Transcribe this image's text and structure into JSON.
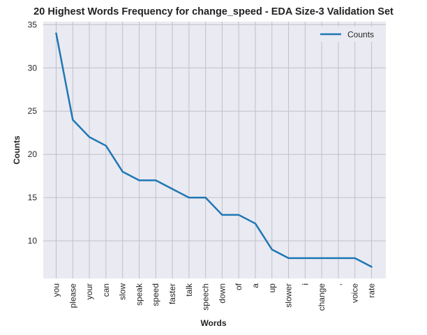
{
  "chart_data": {
    "type": "line",
    "title": "20 Highest Words Frequency for change_speed - EDA Size-3 Validation Set",
    "xlabel": "Words",
    "ylabel": "Counts",
    "categories": [
      "you",
      "please",
      "your",
      "can",
      "slow",
      "speak",
      "speed",
      "faster",
      "talk",
      "speech",
      "down",
      "of",
      "a",
      "up",
      "slower",
      "i",
      "change",
      ",",
      "voice",
      "rate"
    ],
    "series": [
      {
        "name": "Counts",
        "values": [
          34,
          24,
          22,
          21,
          18,
          17,
          17,
          16,
          15,
          15,
          13,
          13,
          12,
          9,
          8,
          8,
          8,
          8,
          8,
          7
        ],
        "color": "#1f77b4"
      }
    ],
    "ylim": [
      5.65,
      35.35
    ],
    "yticks": [
      10,
      15,
      20,
      25,
      30,
      35
    ],
    "grid": true,
    "legend_position": "top-right",
    "colors": {
      "plot_background": "#eaeaf2",
      "grid": "#c0c0c8"
    }
  }
}
